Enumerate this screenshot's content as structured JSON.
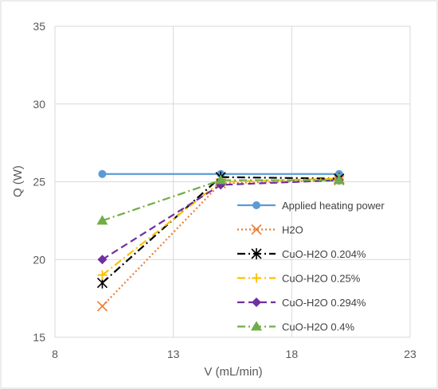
{
  "chart_data": {
    "type": "line",
    "title": "",
    "xlabel": "V (mL/min)",
    "ylabel": "Q (W)",
    "xlim": [
      8,
      23
    ],
    "ylim": [
      15,
      35
    ],
    "xticks": [
      8,
      13,
      18,
      23
    ],
    "yticks": [
      15,
      20,
      25,
      30,
      35
    ],
    "grid": true,
    "legend_position": "right",
    "series": [
      {
        "name": "Applied heating power",
        "color": "#5B9BD5",
        "dash": "solid",
        "marker": "circle",
        "x": [
          10,
          15,
          20
        ],
        "y": [
          25.5,
          25.5,
          25.5
        ]
      },
      {
        "name": "H2O",
        "color": "#ED7D31",
        "dash": "dotted",
        "marker": "x",
        "x": [
          10,
          15,
          20
        ],
        "y": [
          17.0,
          24.9,
          25.1
        ]
      },
      {
        "name": "CuO-H2O 0.204%",
        "color": "#000000",
        "dash": "dashdot",
        "marker": "asterisk",
        "x": [
          10,
          15,
          20
        ],
        "y": [
          18.5,
          25.3,
          25.2
        ]
      },
      {
        "name": "CuO-H2O 0.25%",
        "color": "#FFC000",
        "dash": "dashdot",
        "marker": "plus",
        "x": [
          10,
          15,
          20
        ],
        "y": [
          19.0,
          25.0,
          25.2
        ]
      },
      {
        "name": "CuO-H2O 0.294%",
        "color": "#7030A0",
        "dash": "dashed",
        "marker": "diamond",
        "x": [
          10,
          15,
          20
        ],
        "y": [
          20.0,
          24.8,
          25.1
        ]
      },
      {
        "name": "CuO-H2O 0.4%",
        "color": "#70AD47",
        "dash": "dashdot",
        "marker": "triangle",
        "x": [
          10,
          15,
          20
        ],
        "y": [
          22.5,
          25.1,
          25.1
        ]
      }
    ]
  }
}
